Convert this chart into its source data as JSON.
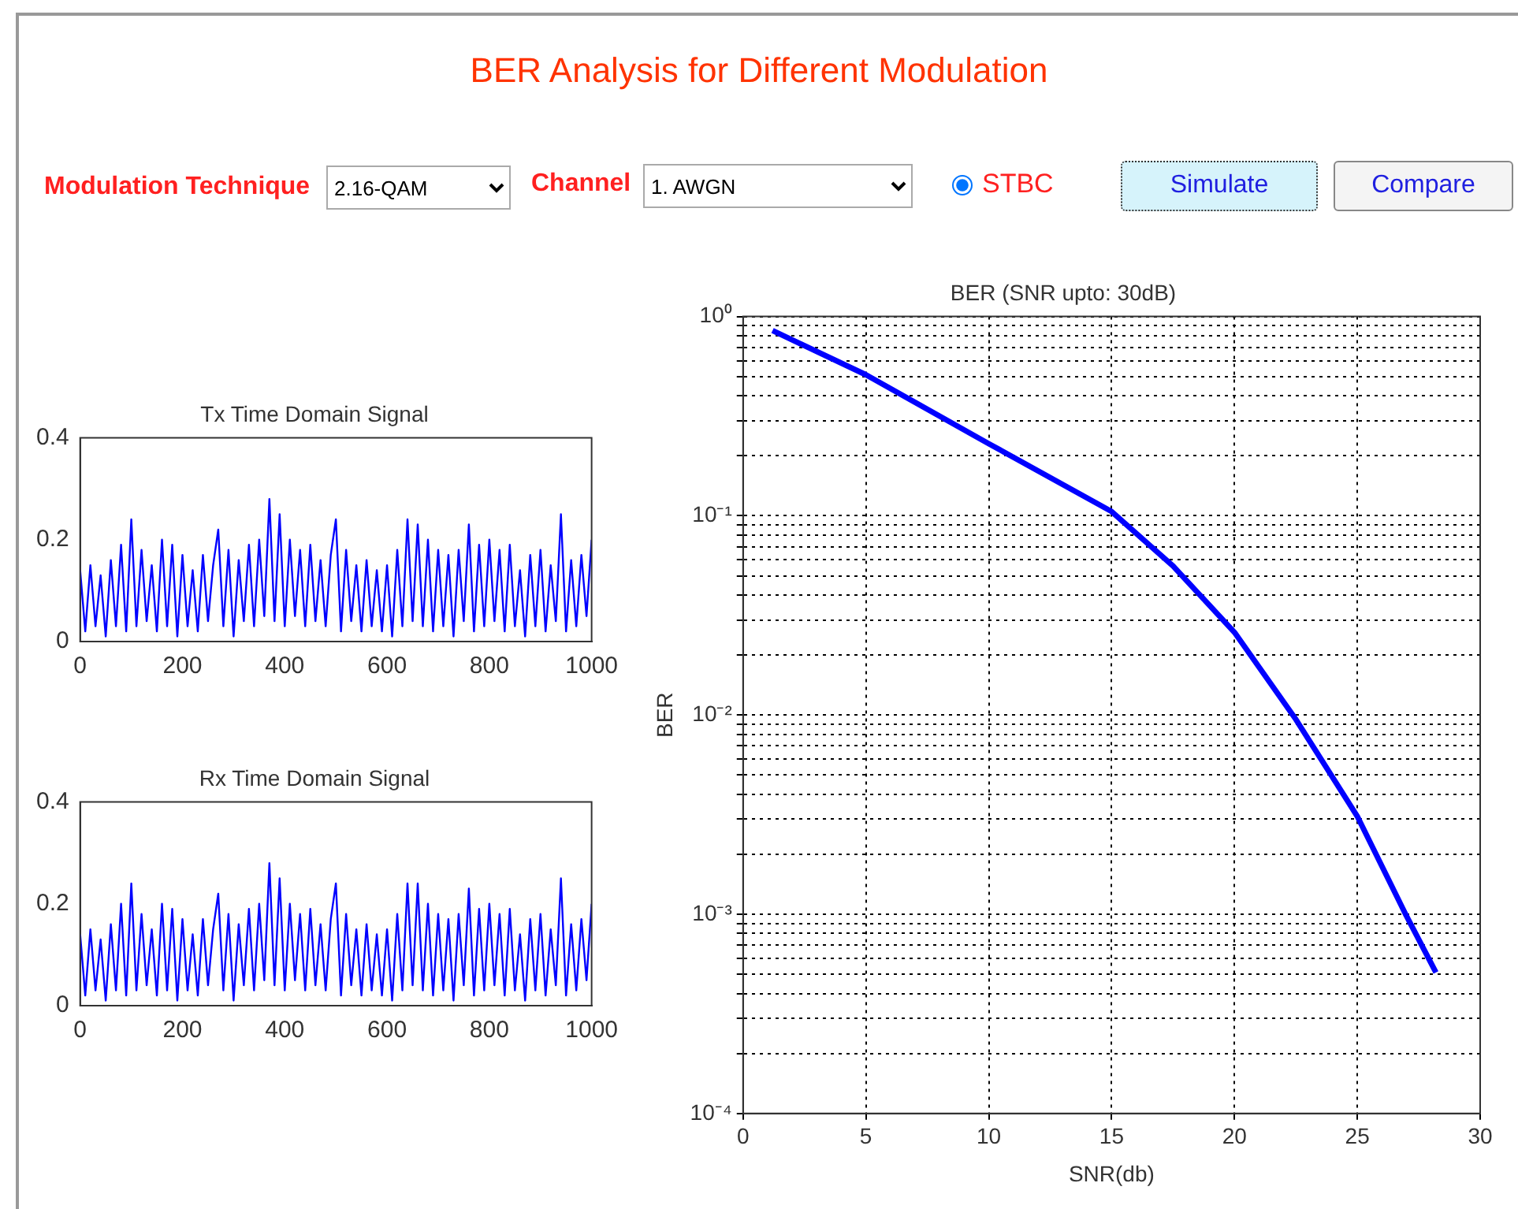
{
  "chart_data": [
    {
      "type": "other",
      "title": "BER Analysis for Different Modulation",
      "annotations": [
        "Modulation Technique",
        "2.16-QAM",
        "Channel",
        "1. AWGN",
        "STBC",
        "Simulate",
        "Compare"
      ]
    },
    {
      "type": "line",
      "title": "Tx Time Domain Signal",
      "color": "#0000ff",
      "xlim": [
        0,
        1000
      ],
      "ylim": [
        0,
        0.4
      ],
      "xticks": [
        0,
        200,
        400,
        600,
        800,
        1000
      ],
      "yticks": [
        0,
        0.2,
        0.4
      ],
      "grid": false,
      "x": [
        0,
        10,
        20,
        30,
        40,
        50,
        60,
        70,
        80,
        90,
        100,
        110,
        120,
        130,
        140,
        150,
        160,
        170,
        180,
        190,
        200,
        210,
        220,
        230,
        240,
        250,
        260,
        270,
        280,
        290,
        300,
        310,
        320,
        330,
        340,
        350,
        360,
        370,
        380,
        390,
        400,
        410,
        420,
        430,
        440,
        450,
        460,
        470,
        480,
        490,
        500,
        510,
        520,
        530,
        540,
        550,
        560,
        570,
        580,
        590,
        600,
        610,
        620,
        630,
        640,
        650,
        660,
        670,
        680,
        690,
        700,
        710,
        720,
        730,
        740,
        750,
        760,
        770,
        780,
        790,
        800,
        810,
        820,
        830,
        840,
        850,
        860,
        870,
        880,
        890,
        900,
        910,
        920,
        930,
        940,
        950,
        960,
        970,
        980,
        990,
        1000
      ],
      "values": [
        0.14,
        0.02,
        0.15,
        0.03,
        0.13,
        0.01,
        0.16,
        0.03,
        0.19,
        0.02,
        0.24,
        0.03,
        0.18,
        0.04,
        0.15,
        0.02,
        0.2,
        0.03,
        0.19,
        0.01,
        0.17,
        0.03,
        0.14,
        0.02,
        0.17,
        0.04,
        0.15,
        0.22,
        0.03,
        0.18,
        0.01,
        0.16,
        0.04,
        0.19,
        0.03,
        0.2,
        0.05,
        0.28,
        0.04,
        0.25,
        0.03,
        0.2,
        0.05,
        0.18,
        0.03,
        0.19,
        0.04,
        0.16,
        0.03,
        0.17,
        0.24,
        0.02,
        0.18,
        0.04,
        0.15,
        0.02,
        0.16,
        0.03,
        0.14,
        0.02,
        0.15,
        0.01,
        0.18,
        0.03,
        0.24,
        0.04,
        0.23,
        0.03,
        0.2,
        0.02,
        0.18,
        0.03,
        0.17,
        0.01,
        0.18,
        0.04,
        0.23,
        0.02,
        0.19,
        0.03,
        0.2,
        0.04,
        0.18,
        0.02,
        0.19,
        0.03,
        0.14,
        0.01,
        0.17,
        0.03,
        0.18,
        0.02,
        0.15,
        0.04,
        0.25,
        0.02,
        0.16,
        0.03,
        0.17,
        0.05,
        0.2
      ]
    },
    {
      "type": "line",
      "title": "Rx Time Domain Signal",
      "color": "#0000ff",
      "xlim": [
        0,
        1000
      ],
      "ylim": [
        0,
        0.4
      ],
      "xticks": [
        0,
        200,
        400,
        600,
        800,
        1000
      ],
      "yticks": [
        0,
        0.2,
        0.4
      ],
      "grid": false,
      "x": [
        0,
        10,
        20,
        30,
        40,
        50,
        60,
        70,
        80,
        90,
        100,
        110,
        120,
        130,
        140,
        150,
        160,
        170,
        180,
        190,
        200,
        210,
        220,
        230,
        240,
        250,
        260,
        270,
        280,
        290,
        300,
        310,
        320,
        330,
        340,
        350,
        360,
        370,
        380,
        390,
        400,
        410,
        420,
        430,
        440,
        450,
        460,
        470,
        480,
        490,
        500,
        510,
        520,
        530,
        540,
        550,
        560,
        570,
        580,
        590,
        600,
        610,
        620,
        630,
        640,
        650,
        660,
        670,
        680,
        690,
        700,
        710,
        720,
        730,
        740,
        750,
        760,
        770,
        780,
        790,
        800,
        810,
        820,
        830,
        840,
        850,
        860,
        870,
        880,
        890,
        900,
        910,
        920,
        930,
        940,
        950,
        960,
        970,
        980,
        990,
        1000
      ],
      "values": [
        0.14,
        0.02,
        0.15,
        0.03,
        0.13,
        0.01,
        0.16,
        0.03,
        0.2,
        0.02,
        0.24,
        0.03,
        0.18,
        0.04,
        0.15,
        0.02,
        0.2,
        0.03,
        0.19,
        0.01,
        0.17,
        0.03,
        0.14,
        0.02,
        0.17,
        0.04,
        0.15,
        0.22,
        0.03,
        0.18,
        0.01,
        0.16,
        0.04,
        0.19,
        0.03,
        0.2,
        0.05,
        0.28,
        0.04,
        0.25,
        0.03,
        0.2,
        0.05,
        0.18,
        0.03,
        0.19,
        0.04,
        0.16,
        0.03,
        0.17,
        0.24,
        0.02,
        0.18,
        0.04,
        0.15,
        0.02,
        0.16,
        0.03,
        0.14,
        0.02,
        0.15,
        0.01,
        0.18,
        0.03,
        0.24,
        0.04,
        0.24,
        0.03,
        0.2,
        0.02,
        0.18,
        0.03,
        0.17,
        0.01,
        0.18,
        0.04,
        0.23,
        0.02,
        0.19,
        0.03,
        0.2,
        0.04,
        0.18,
        0.02,
        0.19,
        0.03,
        0.14,
        0.01,
        0.17,
        0.03,
        0.18,
        0.02,
        0.15,
        0.04,
        0.25,
        0.02,
        0.16,
        0.03,
        0.17,
        0.05,
        0.2
      ]
    },
    {
      "type": "line",
      "title": "BER (SNR upto: 30dB)",
      "xlabel": "SNR(db)",
      "ylabel": "BER",
      "color": "#0000ff",
      "log": true,
      "grid": true,
      "xlim": [
        0,
        30
      ],
      "ylim": [
        0.0001,
        1
      ],
      "xticks": [
        0,
        5,
        10,
        15,
        20,
        25,
        30
      ],
      "yticks": [
        {
          "value": 0.0001,
          "label": "10⁻⁴"
        },
        {
          "value": 0.0002,
          "label": null
        },
        {
          "value": 0.0003,
          "label": null
        },
        {
          "value": 0.0004,
          "label": null
        },
        {
          "value": 0.0005,
          "label": null
        },
        {
          "value": 0.0006,
          "label": null
        },
        {
          "value": 0.0007,
          "label": null
        },
        {
          "value": 0.0008,
          "label": null
        },
        {
          "value": 0.0009,
          "label": null
        },
        {
          "value": 0.001,
          "label": "10⁻³"
        },
        {
          "value": 0.002,
          "label": null
        },
        {
          "value": 0.003,
          "label": null
        },
        {
          "value": 0.004,
          "label": null
        },
        {
          "value": 0.005,
          "label": null
        },
        {
          "value": 0.006,
          "label": null
        },
        {
          "value": 0.007,
          "label": null
        },
        {
          "value": 0.008,
          "label": null
        },
        {
          "value": 0.009,
          "label": null
        },
        {
          "value": 0.01,
          "label": "10⁻²"
        },
        {
          "value": 0.02,
          "label": null
        },
        {
          "value": 0.03,
          "label": null
        },
        {
          "value": 0.04,
          "label": null
        },
        {
          "value": 0.05,
          "label": null
        },
        {
          "value": 0.06,
          "label": null
        },
        {
          "value": 0.07,
          "label": null
        },
        {
          "value": 0.08,
          "label": null
        },
        {
          "value": 0.09,
          "label": null
        },
        {
          "value": 0.1,
          "label": "10⁻¹"
        },
        {
          "value": 0.2,
          "label": null
        },
        {
          "value": 0.3,
          "label": null
        },
        {
          "value": 0.4,
          "label": null
        },
        {
          "value": 0.5,
          "label": null
        },
        {
          "value": 0.6,
          "label": null
        },
        {
          "value": 0.7,
          "label": null
        },
        {
          "value": 0.8,
          "label": null
        },
        {
          "value": 0.9,
          "label": null
        },
        {
          "value": 1,
          "label": "10⁰"
        }
      ],
      "x": [
        1.2,
        5,
        10,
        15,
        17.5,
        20,
        22.5,
        25,
        27,
        28.2
      ],
      "values": [
        0.85,
        0.51,
        0.23,
        0.105,
        0.056,
        0.026,
        0.0095,
        0.0031,
        0.00098,
        0.00051
      ]
    }
  ]
}
